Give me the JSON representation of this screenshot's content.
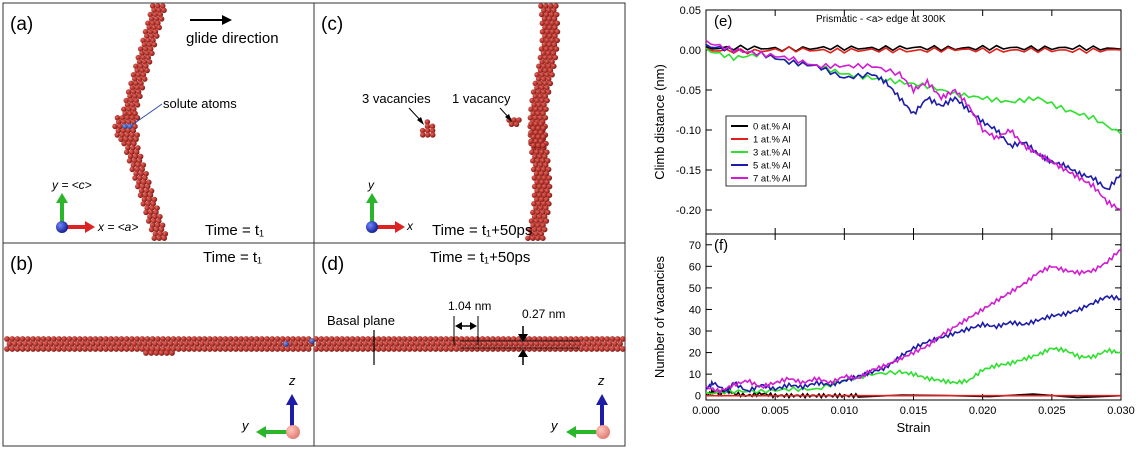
{
  "panels": {
    "a": {
      "label": "(a)",
      "glide": "glide direction",
      "solute": "solute atoms",
      "axis_y": "y = <c>",
      "axis_x": "x = <a>",
      "time": "Time = t₁"
    },
    "b": {
      "label": "(b)",
      "time": "Time = t₁",
      "axis_z": "z",
      "axis_y": "y"
    },
    "c": {
      "label": "(c)",
      "vac3": "3 vacancies",
      "vac1": "1 vacancy",
      "axis_y": "y",
      "axis_x": "x",
      "time": "Time = t₁+50ps"
    },
    "d": {
      "label": "(d)",
      "time": "Time = t₁+50ps",
      "basal": "Basal plane",
      "dist1": "1.04 nm",
      "dist2": "0.27 nm",
      "axis_z": "z",
      "axis_y": "y"
    }
  },
  "colors": {
    "atom": "#b0302a",
    "solute": "#2d4db0",
    "black": "#000000",
    "red": "#e0201a",
    "green": "#2ee02e",
    "blue": "#1c1ca8",
    "magenta": "#d21cd2"
  },
  "chart_data": [
    {
      "type": "line",
      "panel_label": "(e)",
      "title": "Prismatic - <a> edge at 300K",
      "xlabel": "",
      "ylabel": "Climb distance (nm)",
      "xlim": [
        0.0,
        0.03
      ],
      "ylim": [
        -0.23,
        0.05
      ],
      "yticks": [
        "0.05",
        "0.00",
        "-0.05",
        "-0.10",
        "-0.15",
        "-0.20"
      ],
      "ytick_values": [
        0.05,
        0.0,
        -0.05,
        -0.1,
        -0.15,
        -0.2
      ],
      "legend_position": "center-left",
      "series": [
        {
          "name": "0 at.% Al",
          "color": "#000000",
          "x": [
            0,
            0.003,
            0.006,
            0.009,
            0.012,
            0.015,
            0.018,
            0.021,
            0.024,
            0.027,
            0.03
          ],
          "y": [
            0.002,
            0.003,
            0.001,
            0.003,
            0.002,
            0.003,
            0.002,
            0.003,
            0.002,
            0.003,
            0.001
          ]
        },
        {
          "name": "1 at.% Al",
          "color": "#e0201a",
          "x": [
            0,
            0.003,
            0.006,
            0.009,
            0.012,
            0.015,
            0.018,
            0.021,
            0.024,
            0.027,
            0.03
          ],
          "y": [
            0.0,
            -0.002,
            0.001,
            -0.001,
            0.0,
            -0.001,
            0.001,
            -0.001,
            0.0,
            -0.001,
            0.0
          ]
        },
        {
          "name": "3 at.% Al",
          "color": "#2ee02e",
          "x": [
            0,
            0.002,
            0.004,
            0.006,
            0.008,
            0.01,
            0.012,
            0.014,
            0.016,
            0.018,
            0.02,
            0.022,
            0.024,
            0.026,
            0.028,
            0.03
          ],
          "y": [
            0.0,
            -0.01,
            -0.005,
            -0.015,
            -0.02,
            -0.03,
            -0.035,
            -0.04,
            -0.045,
            -0.055,
            -0.06,
            -0.065,
            -0.06,
            -0.075,
            -0.085,
            -0.105
          ]
        },
        {
          "name": "5 at.% Al",
          "color": "#1c1ca8",
          "x": [
            0,
            0.002,
            0.004,
            0.006,
            0.008,
            0.01,
            0.012,
            0.013,
            0.014,
            0.015,
            0.016,
            0.017,
            0.018,
            0.019,
            0.02,
            0.021,
            0.022,
            0.023,
            0.024,
            0.025,
            0.026,
            0.027,
            0.028,
            0.029,
            0.03
          ],
          "y": [
            0.005,
            0.0,
            -0.005,
            -0.015,
            -0.02,
            -0.035,
            -0.03,
            -0.04,
            -0.06,
            -0.08,
            -0.06,
            -0.07,
            -0.06,
            -0.075,
            -0.09,
            -0.1,
            -0.12,
            -0.115,
            -0.13,
            -0.14,
            -0.145,
            -0.155,
            -0.16,
            -0.175,
            -0.155
          ]
        },
        {
          "name": "7 at.% Al",
          "color": "#d21cd2",
          "x": [
            0,
            0.002,
            0.004,
            0.006,
            0.008,
            0.01,
            0.012,
            0.014,
            0.015,
            0.016,
            0.017,
            0.018,
            0.019,
            0.02,
            0.021,
            0.022,
            0.023,
            0.024,
            0.025,
            0.026,
            0.027,
            0.028,
            0.029,
            0.03
          ],
          "y": [
            0.01,
            0.0,
            -0.005,
            -0.01,
            -0.02,
            -0.02,
            -0.02,
            -0.03,
            -0.05,
            -0.04,
            -0.06,
            -0.05,
            -0.07,
            -0.1,
            -0.11,
            -0.1,
            -0.12,
            -0.13,
            -0.14,
            -0.15,
            -0.16,
            -0.17,
            -0.19,
            -0.2
          ]
        }
      ]
    },
    {
      "type": "line",
      "panel_label": "(f)",
      "title": "",
      "xlabel": "Strain",
      "ylabel": "Number of vacancies",
      "xlim": [
        0.0,
        0.03
      ],
      "ylim": [
        -2,
        75
      ],
      "xticks": [
        "0.000",
        "0.005",
        "0.010",
        "0.015",
        "0.020",
        "0.025",
        "0.030"
      ],
      "xtick_values": [
        0.0,
        0.005,
        0.01,
        0.015,
        0.02,
        0.025,
        0.03
      ],
      "yticks": [
        "0",
        "10",
        "20",
        "30",
        "40",
        "50",
        "60",
        "70"
      ],
      "ytick_values": [
        0,
        10,
        20,
        30,
        40,
        50,
        60,
        70
      ],
      "series": [
        {
          "name": "0 at.% Al",
          "color": "#000000",
          "x": [
            0,
            0.0005,
            0.001,
            0.0015,
            0.002,
            0.003,
            0.004,
            0.005,
            0.006,
            0.007,
            0.008,
            0.009,
            0.01,
            0.011,
            0.03
          ],
          "y": [
            0,
            2,
            1,
            3,
            1,
            0,
            1,
            0,
            0,
            0,
            0,
            0,
            0,
            0,
            0
          ]
        },
        {
          "name": "1 at.% Al",
          "color": "#e0201a",
          "x": [
            0,
            0.03
          ],
          "y": [
            0,
            0
          ]
        },
        {
          "name": "3 at.% Al",
          "color": "#2ee02e",
          "x": [
            0,
            0.002,
            0.004,
            0.006,
            0.008,
            0.01,
            0.012,
            0.014,
            0.015,
            0.016,
            0.017,
            0.018,
            0.019,
            0.02,
            0.021,
            0.022,
            0.023,
            0.024,
            0.025,
            0.026,
            0.027,
            0.028,
            0.029,
            0.03
          ],
          "y": [
            1,
            2,
            2,
            3,
            3,
            7,
            10,
            11,
            10,
            8,
            7,
            6,
            7,
            12,
            14,
            15,
            17,
            19,
            22,
            21,
            18,
            18,
            21,
            20
          ]
        },
        {
          "name": "5 at.% Al",
          "color": "#1c1ca8",
          "x": [
            0,
            0.0005,
            0.0015,
            0.002,
            0.003,
            0.004,
            0.005,
            0.006,
            0.007,
            0.008,
            0.009,
            0.01,
            0.011,
            0.012,
            0.013,
            0.014,
            0.015,
            0.016,
            0.017,
            0.018,
            0.019,
            0.02,
            0.021,
            0.022,
            0.023,
            0.024,
            0.025,
            0.026,
            0.027,
            0.028,
            0.029,
            0.03
          ],
          "y": [
            3,
            6,
            2,
            6,
            2,
            5,
            3,
            5,
            4,
            6,
            5,
            7,
            9,
            11,
            13,
            18,
            22,
            25,
            27,
            29,
            31,
            33,
            32,
            34,
            33,
            35,
            37,
            38,
            40,
            43,
            46,
            45
          ]
        },
        {
          "name": "7 at.% Al",
          "color": "#d21cd2",
          "x": [
            0,
            0.001,
            0.002,
            0.003,
            0.004,
            0.005,
            0.006,
            0.007,
            0.008,
            0.009,
            0.01,
            0.011,
            0.012,
            0.013,
            0.014,
            0.015,
            0.016,
            0.017,
            0.018,
            0.019,
            0.02,
            0.021,
            0.022,
            0.023,
            0.024,
            0.025,
            0.026,
            0.027,
            0.028,
            0.029,
            0.03
          ],
          "y": [
            4,
            2,
            5,
            7,
            4,
            6,
            8,
            6,
            8,
            6,
            9,
            8,
            12,
            14,
            17,
            20,
            23,
            28,
            32,
            36,
            40,
            44,
            48,
            52,
            57,
            60,
            58,
            57,
            58,
            62,
            68
          ]
        }
      ]
    }
  ]
}
